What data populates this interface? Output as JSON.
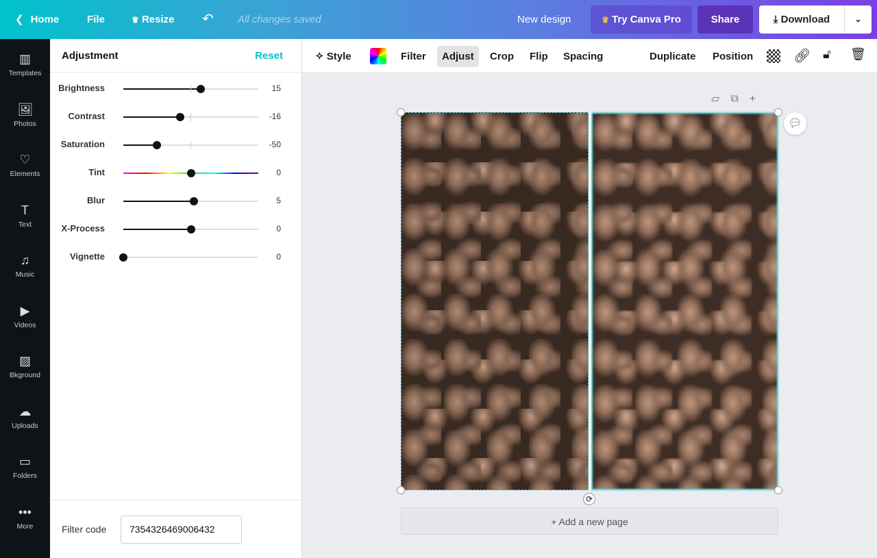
{
  "topbar": {
    "home": "Home",
    "file": "File",
    "resize": "Resize",
    "saved": "All changes saved",
    "design_name": "New design",
    "try_pro": "Try Canva Pro",
    "share": "Share",
    "download": "Download"
  },
  "sidebar": {
    "items": [
      {
        "label": "Templates",
        "icon": "▥"
      },
      {
        "label": "Photos",
        "icon": "🖼"
      },
      {
        "label": "Elements",
        "icon": "♡"
      },
      {
        "label": "Text",
        "icon": "T"
      },
      {
        "label": "Music",
        "icon": "♫"
      },
      {
        "label": "Videos",
        "icon": "▶"
      },
      {
        "label": "Bkground",
        "icon": "▨"
      },
      {
        "label": "Uploads",
        "icon": "☁"
      },
      {
        "label": "Folders",
        "icon": "▭"
      },
      {
        "label": "More",
        "icon": "•••"
      }
    ]
  },
  "panel": {
    "title": "Adjustment",
    "reset": "Reset",
    "accent": "#00c4cc",
    "sliders": [
      {
        "label": "Brightness",
        "value": 15,
        "min": -100,
        "max": 100
      },
      {
        "label": "Contrast",
        "value": -16,
        "min": -100,
        "max": 100
      },
      {
        "label": "Saturation",
        "value": -50,
        "min": -100,
        "max": 100
      },
      {
        "label": "Tint",
        "value": 0,
        "min": -100,
        "max": 100,
        "rainbow": true
      },
      {
        "label": "Blur",
        "value": 5,
        "min": -100,
        "max": 100
      },
      {
        "label": "X-Process",
        "value": 0,
        "min": -100,
        "max": 100
      },
      {
        "label": "Vignette",
        "value": 0,
        "min": 0,
        "max": 100
      }
    ],
    "filter_code_label": "Filter code",
    "filter_code": "7354326469006432"
  },
  "toolbar": {
    "style": "Style",
    "filter": "Filter",
    "adjust": "Adjust",
    "crop": "Crop",
    "flip": "Flip",
    "spacing": "Spacing",
    "duplicate": "Duplicate",
    "position": "Position"
  },
  "canvas": {
    "add_page": "+ Add a new page"
  }
}
